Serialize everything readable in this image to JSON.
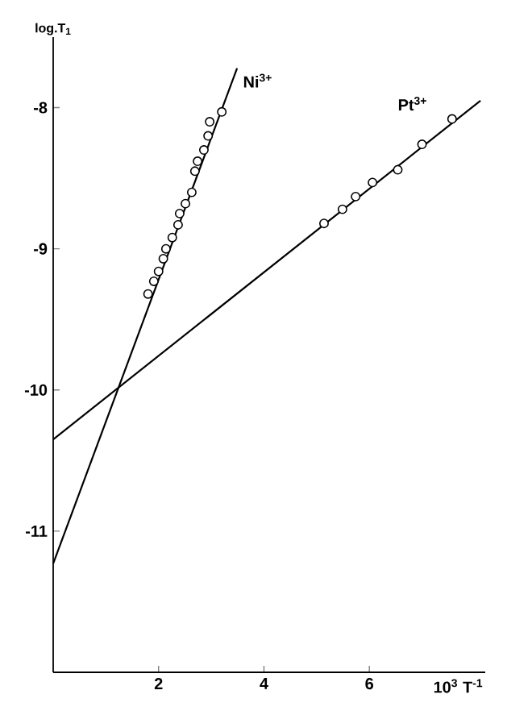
{
  "chart_data": {
    "type": "scatter",
    "xlabel": "10$^{3}$ T$^{-1}$",
    "ylabel": "log.T$_{1}$",
    "xlim": [
      0,
      8.2
    ],
    "ylim": [
      -12,
      -7.5
    ],
    "xticks": [
      2,
      4,
      6
    ],
    "yticks": [
      -11,
      -10,
      -9,
      -8
    ],
    "grid": false,
    "legend": false,
    "series": [
      {
        "name": "Ni$^{3+}$",
        "marker": "circle",
        "color": "#000000",
        "x": [
          1.8,
          1.91,
          2.0,
          2.09,
          2.14,
          2.26,
          2.37,
          2.4,
          2.51,
          2.63,
          2.69,
          2.74,
          2.86,
          2.94,
          2.97,
          3.2
        ],
        "values": [
          -9.32,
          -9.23,
          -9.16,
          -9.07,
          -9.0,
          -8.92,
          -8.83,
          -8.75,
          -8.68,
          -8.6,
          -8.45,
          -8.38,
          -8.3,
          -8.2,
          -8.1,
          -8.03
        ]
      },
      {
        "type": "line",
        "marker": "none",
        "color": "#000000",
        "x": [
          0,
          3.49
        ],
        "values": [
          -11.23,
          -7.72
        ]
      },
      {
        "name": "Pt$^{3+}$",
        "marker": "circle",
        "color": "#000000",
        "x": [
          5.14,
          5.49,
          5.74,
          6.06,
          6.54,
          7.0,
          7.57
        ],
        "values": [
          -8.82,
          -8.72,
          -8.63,
          -8.53,
          -8.44,
          -8.26,
          -8.08
        ]
      },
      {
        "type": "line",
        "marker": "none",
        "color": "#000000",
        "x": [
          0,
          8.11
        ],
        "values": [
          -10.35,
          -7.95
        ]
      }
    ]
  }
}
